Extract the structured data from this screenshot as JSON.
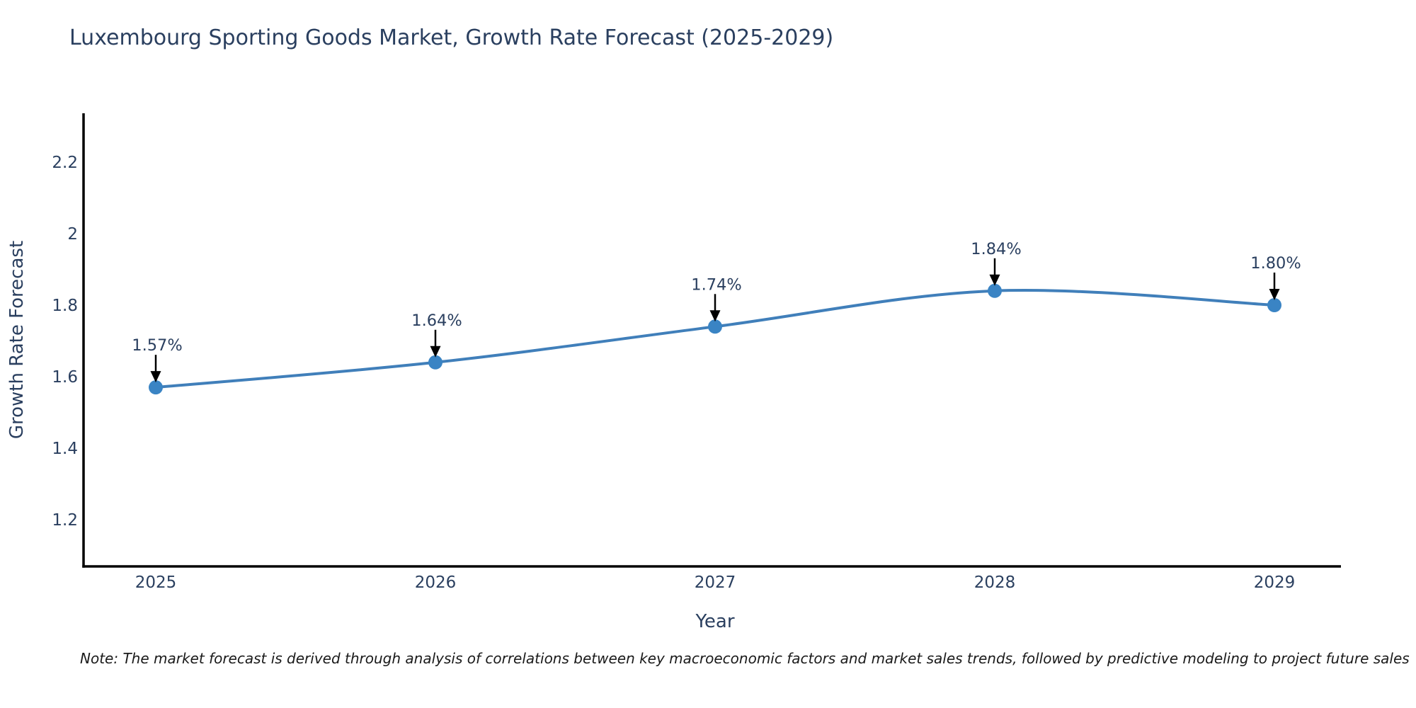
{
  "title": "Luxembourg Sporting Goods Market, Growth Rate Forecast (2025-2029)",
  "note": "Note: The market forecast is derived through analysis of correlations between key macroeconomic factors and market sales trends, followed by predictive modeling to project future sales",
  "chart_data": {
    "type": "line",
    "title": "Luxembourg Sporting Goods Market, Growth Rate Forecast (2025-2029)",
    "xlabel": "Year",
    "ylabel": "Growth Rate Forecast",
    "x": [
      2025,
      2026,
      2027,
      2028,
      2029
    ],
    "series": [
      {
        "name": "Growth Rate Forecast",
        "values": [
          1.57,
          1.64,
          1.74,
          1.84,
          1.8
        ],
        "point_labels": [
          "1.57%",
          "1.64%",
          "1.74%",
          "1.84%",
          "1.80%"
        ]
      }
    ],
    "yticks": [
      1.2,
      1.4,
      1.6,
      1.8,
      2,
      2.2
    ],
    "ytick_labels": [
      "1.2",
      "1.4",
      "1.6",
      "1.8",
      "2",
      "2.2"
    ],
    "xtick_labels": [
      "2025",
      "2026",
      "2027",
      "2028",
      "2029"
    ],
    "ylim": [
      1.07,
      2.34
    ],
    "grid": false,
    "legend_position": "none",
    "line_smoothing": "spline",
    "colors": {
      "line": "#407fba",
      "marker": "#3a84c4",
      "axis": "#000000",
      "text": "#2a3f5f",
      "annotation_arrow": "#000000"
    }
  }
}
